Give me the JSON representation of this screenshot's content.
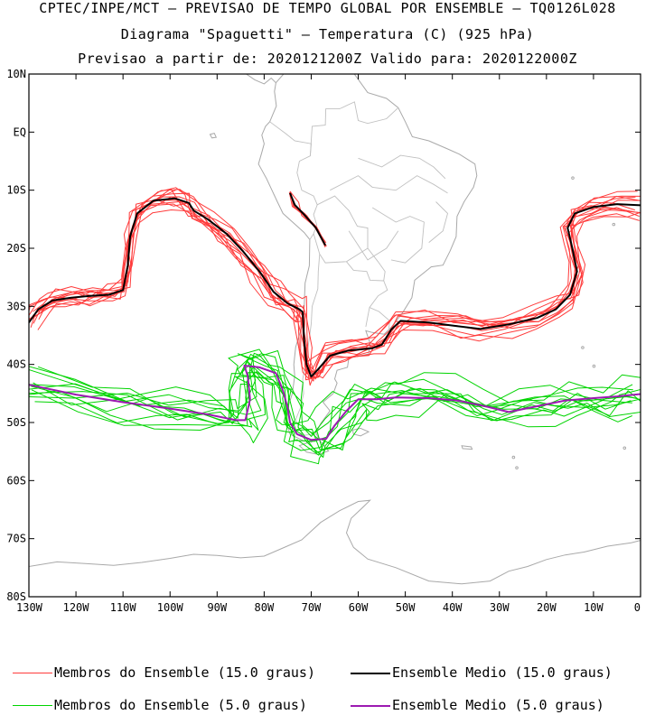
{
  "header": {
    "line1": "CPTEC/INPE/MCT – PREVISAO DE TEMPO GLOBAL POR ENSEMBLE – TQ0126L028",
    "line2": "Diagrama \"Spaguetti\" – Temperatura (C) (925 hPa)",
    "line3": "Previsao a partir de: 2020121200Z  Valido para: 2020122000Z"
  },
  "map": {
    "lon_range": [
      -130,
      0
    ],
    "lat_range": [
      -80,
      10
    ],
    "lat_ticks": [
      "10N",
      "EQ",
      "10S",
      "20S",
      "30S",
      "40S",
      "50S",
      "60S",
      "70S",
      "80S"
    ],
    "lon_ticks": [
      "130W",
      "120W",
      "110W",
      "100W",
      "90W",
      "80W",
      "70W",
      "60W",
      "50W",
      "40W",
      "30W",
      "20W",
      "10W",
      "0"
    ],
    "coast_color": "#a9a9a9"
  },
  "contours": {
    "t15": {
      "member_color": "#ff3b3b",
      "mean_color": "#000000",
      "mean_path": [
        [
          -130,
          -32.8
        ],
        [
          -128,
          -30.5
        ],
        [
          -125,
          -29
        ],
        [
          -121,
          -28.5
        ],
        [
          -117,
          -28.2
        ],
        [
          -113,
          -28
        ],
        [
          -110,
          -27.2
        ],
        [
          -109,
          -23
        ],
        [
          -108.5,
          -18
        ],
        [
          -107,
          -14
        ],
        [
          -103.5,
          -11.8
        ],
        [
          -99,
          -11.4
        ],
        [
          -96,
          -12.2
        ],
        [
          -95,
          -13.5
        ],
        [
          -92,
          -15
        ],
        [
          -88,
          -17.5
        ],
        [
          -84.5,
          -20.5
        ],
        [
          -81,
          -24
        ],
        [
          -78,
          -27.5
        ],
        [
          -75,
          -29.5
        ],
        [
          -72.5,
          -30.5
        ],
        [
          -71.8,
          -31
        ],
        [
          -71.5,
          -36
        ],
        [
          -71,
          -40
        ],
        [
          -70,
          -42.1
        ],
        [
          -68.5,
          -40.8
        ],
        [
          -66,
          -38.5
        ],
        [
          -62,
          -37.6
        ],
        [
          -57,
          -37.2
        ],
        [
          -55,
          -36.6
        ],
        [
          -53,
          -34
        ],
        [
          -51,
          -32.5
        ],
        [
          -45,
          -32.8
        ],
        [
          -39,
          -33.4
        ],
        [
          -34,
          -33.9
        ],
        [
          -28,
          -33.1
        ],
        [
          -22,
          -32
        ],
        [
          -18,
          -30.5
        ],
        [
          -15,
          -28
        ],
        [
          -13.5,
          -24
        ],
        [
          -14.5,
          -20
        ],
        [
          -15.5,
          -16.5
        ],
        [
          -14,
          -14
        ],
        [
          -10,
          -12.9
        ],
        [
          -5,
          -12.4
        ],
        [
          0,
          -12.6
        ]
      ],
      "mean_andes_path": [
        [
          -74.5,
          -10.5
        ],
        [
          -73.5,
          -12.5
        ],
        [
          -71.5,
          -14.2
        ],
        [
          -69,
          -16.5
        ],
        [
          -67,
          -19.5
        ]
      ]
    },
    "t5": {
      "member_color": "#00d400",
      "mean_color": "#9c1ab1",
      "mean_path": [
        [
          -130,
          -43.5
        ],
        [
          -120,
          -45.2
        ],
        [
          -110,
          -46.5
        ],
        [
          -100,
          -47.6
        ],
        [
          -92,
          -48.6
        ],
        [
          -86,
          -49.6
        ],
        [
          -84,
          -49.6
        ],
        [
          -83,
          -46
        ],
        [
          -83.5,
          -42
        ],
        [
          -84.2,
          -40.2
        ],
        [
          -81,
          -40.5
        ],
        [
          -77.5,
          -41.5
        ],
        [
          -76,
          -44.5
        ],
        [
          -75,
          -47.5
        ],
        [
          -74.5,
          -50
        ],
        [
          -73,
          -52
        ],
        [
          -70,
          -53
        ],
        [
          -66.8,
          -52.8
        ],
        [
          -65,
          -50.5
        ],
        [
          -62.5,
          -48
        ],
        [
          -60,
          -46
        ],
        [
          -56,
          -46
        ],
        [
          -52,
          -45.7
        ],
        [
          -45,
          -45.8
        ],
        [
          -39,
          -46.2
        ],
        [
          -33,
          -47.2
        ],
        [
          -28,
          -48.2
        ],
        [
          -22,
          -47.2
        ],
        [
          -16,
          -46.2
        ],
        [
          -10,
          -45.8
        ],
        [
          -5,
          -45.5
        ],
        [
          0,
          -45.1
        ]
      ]
    }
  },
  "legend": {
    "red_members": "Membros do Ensemble (15.0 graus)",
    "black_mean": "Ensemble Medio (15.0 graus)",
    "green_members": "Membros do Ensemble (5.0 graus)",
    "purple_mean": "Ensemble Medio (5.0 graus)"
  }
}
